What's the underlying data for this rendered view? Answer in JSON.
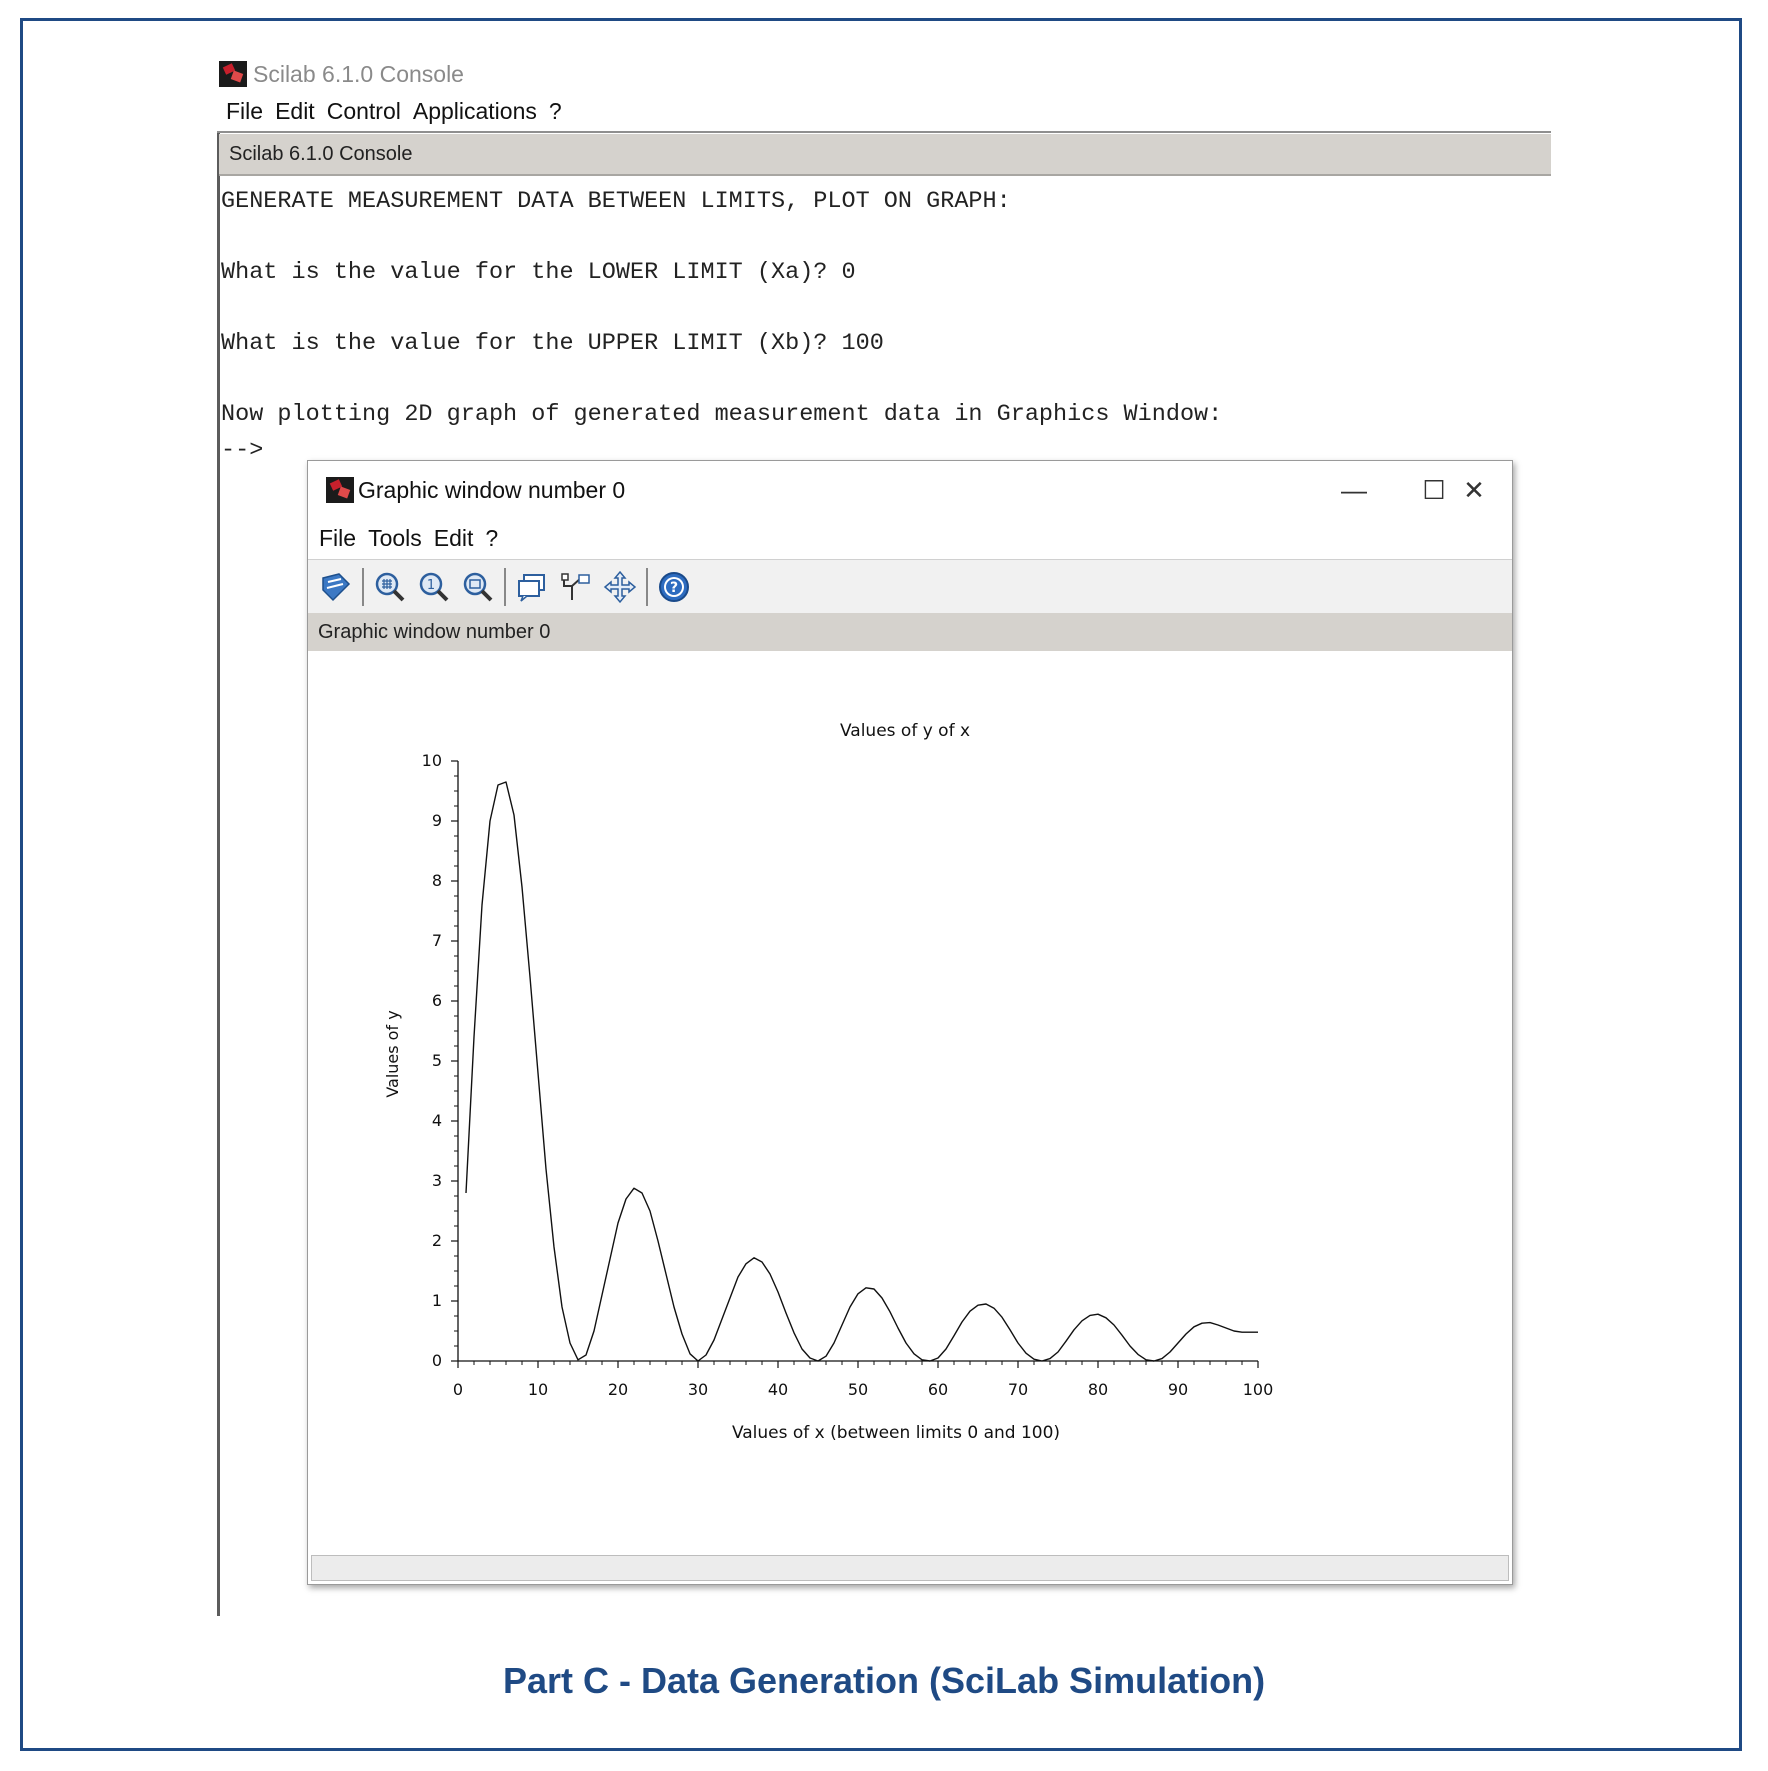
{
  "console": {
    "title": "Scilab 6.1.0 Console",
    "menu": [
      "File",
      "Edit",
      "Control",
      "Applications",
      "?"
    ],
    "header": "Scilab 6.1.0 Console",
    "lines": [
      "GENERATE MEASUREMENT DATA BETWEEN LIMITS, PLOT ON GRAPH:",
      "",
      "What is the value for the LOWER LIMIT (Xa)? 0",
      "",
      "What is the value for the UPPER LIMIT (Xb)? 100",
      "",
      "Now plotting 2D graph of generated measurement data in Graphics Window:",
      "-->"
    ]
  },
  "graphic_window": {
    "title": "Graphic window number 0",
    "menu": [
      "File",
      "Tools",
      "Edit",
      "?"
    ],
    "header": "Graphic window number 0",
    "controls": {
      "minimize": "—",
      "maximize": "☐",
      "close": "✕"
    },
    "toolbar_icons": [
      "rotate-icon",
      "zoom-grid-icon",
      "zoom-in-icon",
      "zoom-out-icon",
      "datatip-icon",
      "datatip-edit-icon",
      "pan-icon",
      "help-icon"
    ]
  },
  "chart_data": {
    "type": "line",
    "title": "Values of y of x",
    "xlabel": "Values of x (between limits 0 and 100)",
    "ylabel": "Values of y",
    "xlim": [
      0,
      100
    ],
    "ylim": [
      0,
      10
    ],
    "xticks": [
      0,
      10,
      20,
      30,
      40,
      50,
      60,
      70,
      80,
      90,
      100
    ],
    "yticks": [
      0,
      1,
      2,
      3,
      4,
      5,
      6,
      7,
      8,
      9,
      10
    ],
    "grid": false,
    "series": [
      {
        "x": [
          1,
          2,
          3,
          4,
          5,
          6,
          7,
          8,
          9,
          10,
          11,
          12,
          13,
          14,
          15,
          16,
          17,
          18,
          19,
          20,
          21,
          22,
          23,
          24,
          25,
          26,
          27,
          28,
          29,
          30,
          31,
          32,
          33,
          34,
          35,
          36,
          37,
          38,
          39,
          40,
          41,
          42,
          43,
          44,
          45,
          46,
          47,
          48,
          49,
          50,
          51,
          52,
          53,
          54,
          55,
          56,
          57,
          58,
          59,
          60,
          61,
          62,
          63,
          64,
          65,
          66,
          67,
          68,
          69,
          70,
          71,
          72,
          73,
          74,
          75,
          76,
          77,
          78,
          79,
          80,
          81,
          82,
          83,
          84,
          85,
          86,
          87,
          88,
          89,
          90,
          91,
          92,
          93,
          94,
          95,
          96,
          97,
          98,
          99,
          100
        ],
        "y": [
          2.8,
          5.4,
          7.6,
          9.0,
          9.6,
          9.65,
          9.1,
          7.9,
          6.4,
          4.8,
          3.2,
          1.9,
          0.9,
          0.3,
          0.02,
          0.1,
          0.5,
          1.1,
          1.7,
          2.3,
          2.7,
          2.88,
          2.8,
          2.5,
          2.0,
          1.45,
          0.9,
          0.45,
          0.12,
          0.0,
          0.1,
          0.35,
          0.7,
          1.05,
          1.4,
          1.62,
          1.72,
          1.65,
          1.45,
          1.15,
          0.8,
          0.47,
          0.2,
          0.05,
          0.0,
          0.08,
          0.3,
          0.6,
          0.9,
          1.12,
          1.22,
          1.2,
          1.05,
          0.82,
          0.55,
          0.3,
          0.12,
          0.02,
          0.0,
          0.05,
          0.2,
          0.42,
          0.65,
          0.83,
          0.93,
          0.95,
          0.88,
          0.73,
          0.52,
          0.3,
          0.13,
          0.03,
          0.0,
          0.04,
          0.15,
          0.33,
          0.52,
          0.67,
          0.76,
          0.78,
          0.72,
          0.6,
          0.43,
          0.25,
          0.11,
          0.02,
          0.0,
          0.04,
          0.15,
          0.3,
          0.45,
          0.57,
          0.63,
          0.64,
          0.6,
          0.55,
          0.5,
          0.48,
          0.48,
          0.48
        ]
      }
    ]
  },
  "caption": "Part C - Data Generation (SciLab Simulation)"
}
